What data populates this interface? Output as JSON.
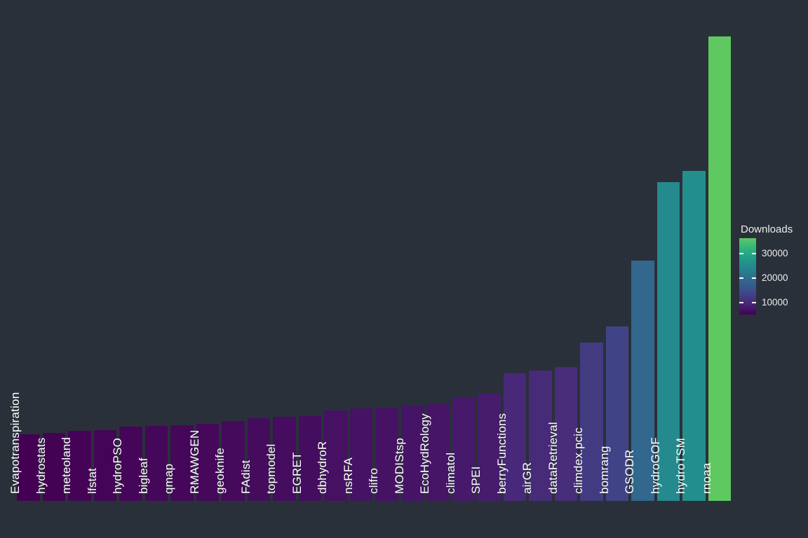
{
  "app": {
    "background_color": "#2A303A",
    "text_color": "#ECECEC",
    "bar_label_color": "#FFFFFF"
  },
  "chart_data": {
    "type": "bar",
    "title": "",
    "orientation": "vertical",
    "grid": false,
    "axes_visible": false,
    "categories": [
      "Evapotranspiration",
      "hydrostats",
      "meteoland",
      "lfstat",
      "hydroPSO",
      "bigleaf",
      "qmap",
      "RMAWGEN",
      "geoknife",
      "FAdist",
      "topmodel",
      "EGRET",
      "dbhydroR",
      "nsRFA",
      "clifro",
      "MODIStsp",
      "EcoHydRology",
      "climatol",
      "SPEI",
      "berryFunctions",
      "airGR",
      "dataRetrieval",
      "climdex.pcic",
      "bomrang",
      "GSODR",
      "hydroGOF",
      "hydroTSM",
      "rnoaa"
    ],
    "values": [
      5200,
      5300,
      5450,
      5550,
      5800,
      5880,
      5900,
      6050,
      6250,
      6450,
      6550,
      6650,
      7050,
      7200,
      7300,
      7450,
      7550,
      8050,
      8400,
      9950,
      10200,
      10450,
      12400,
      13650,
      18800,
      24900,
      25800,
      36300
    ],
    "value_range": [
      5200,
      36300
    ],
    "legend": {
      "title": "Downloads",
      "position": "right",
      "colorbar_ticks": [
        10000,
        20000,
        30000
      ],
      "tick_labels": [
        "10000",
        "20000",
        "30000"
      ]
    },
    "colormap": {
      "name": "viridis-truncated",
      "end": 0.75,
      "stops": [
        "#440154",
        "#482878",
        "#3E4A89",
        "#31688E",
        "#26828E",
        "#1F9E89",
        "#35B779",
        "#6DCD59",
        "#B4DE2C",
        "#FDE725"
      ]
    }
  }
}
